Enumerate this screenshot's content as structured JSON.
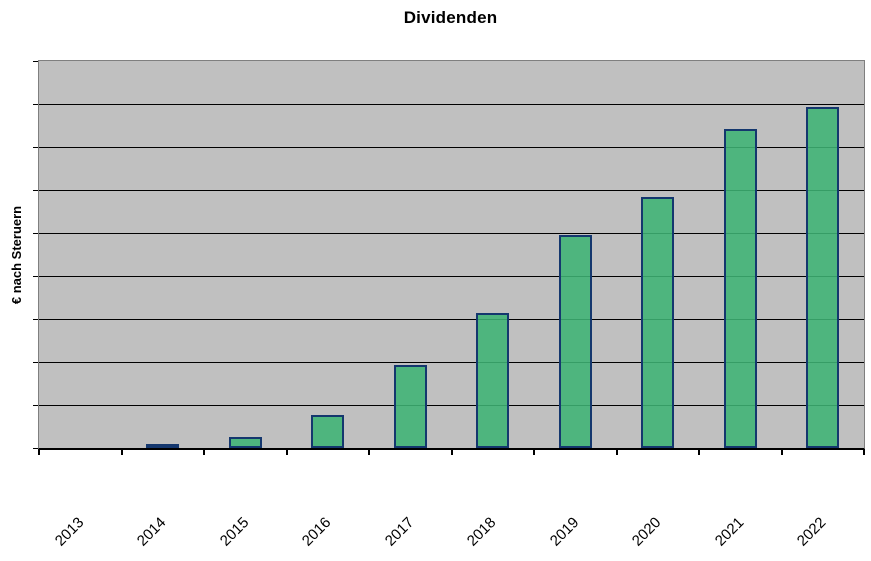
{
  "chart_data": {
    "type": "bar",
    "title": "Dividenden",
    "xlabel": "",
    "ylabel": "€ nach Steruern",
    "categories": [
      "2013",
      "2014",
      "2015",
      "2016",
      "2017",
      "2018",
      "2019",
      "2020",
      "2021",
      "2022"
    ],
    "values": [
      0,
      0.1,
      0.26,
      0.77,
      1.93,
      3.14,
      4.95,
      5.84,
      7.42,
      7.93
    ],
    "ylim": [
      0,
      9
    ],
    "gridline_divisions": 9,
    "y_axis_numeric_labels_shown": false,
    "legend": "none",
    "grid": "horizontal black gridlines on gray plot background",
    "x_tick_label_rotation_deg": 45,
    "units_note": "no numeric y-axis labels visible; values estimated in gridline-division units (1 unit = one horizontal band)"
  },
  "colors": {
    "bar_fill": "#3EB374",
    "bar_fill_alpha": 0.88,
    "bar_border": "#14376E",
    "plot_background": "#C0C0C0",
    "gridline": "#000000",
    "plot_border": "#7F7F7F",
    "axis_line": "#000000",
    "page_background": "#FFFFFF",
    "text": "#000000"
  }
}
